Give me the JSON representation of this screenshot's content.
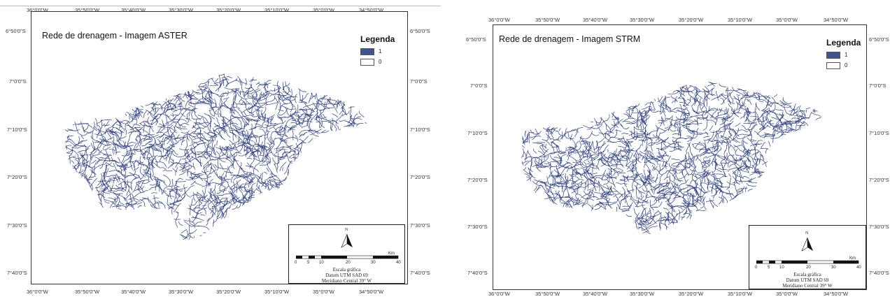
{
  "panels": [
    {
      "title": "Rede de drenagem - Imagem ASTER",
      "legend": {
        "title": "Legenda",
        "items": [
          {
            "label": "1",
            "color": "#3e5592"
          },
          {
            "label": "0",
            "color": "#ffffff"
          }
        ]
      },
      "lon_labels_top": [
        "36°0'0\"W",
        "35°50'0\"W",
        "35°40'0\"W",
        "35°30'0\"W",
        "35°20'0\"W",
        "35°10'0\"W",
        "35°0'0\"W",
        "34°50'0\"W"
      ],
      "lon_labels_bottom": [
        "36°0'0\"W",
        "35°50'0\"W",
        "35°40'0\"W",
        "35°30'0\"W",
        "35°20'0\"W",
        "35°10'0\"W",
        "35°0'0\"W",
        "34°50'0\"W"
      ],
      "lat_labels": [
        "6°50'0\"S",
        "7°0'0\"S",
        "7°10'0\"S",
        "7°20'0\"S",
        "7°30'0\"S",
        "7°40'0\"S"
      ],
      "scale": {
        "north": "N",
        "unit": "Km",
        "ticks": [
          "0",
          "5",
          "10",
          "20",
          "30",
          "40"
        ],
        "lines": [
          "Escala gráfica",
          "Datum UTM SAD 69",
          "Meridiano Central 39° W"
        ]
      },
      "network_color": "#2c3f82",
      "seed": 7
    },
    {
      "title": "Rede de drenagem - Imagem STRM",
      "legend": {
        "title": "Legenda",
        "items": [
          {
            "label": "1",
            "color": "#3e5592"
          },
          {
            "label": "0",
            "color": "#ffffff"
          }
        ]
      },
      "lon_labels_top": [
        "36°0'0\"W",
        "35°50'0\"W",
        "35°40'0\"W",
        "35°30'0\"W",
        "35°20'0\"W",
        "35°10'0\"W",
        "35°0'0\"W",
        "34°50'0\"W"
      ],
      "lon_labels_bottom": [
        "36°0'0\"W",
        "35°50'0\"W",
        "35°40'0\"W",
        "35°30'0\"W",
        "35°20'0\"W",
        "35°10'0\"W",
        "35°0'0\"W",
        "34°50'0\"W"
      ],
      "lat_labels": [
        "6°50'0\"S",
        "7°0'0\"S",
        "7°10'0\"S",
        "7°20'0\"S",
        "7°30'0\"S",
        "7°40'0\"S"
      ],
      "scale": {
        "north": "N",
        "unit": "Km",
        "ticks": [
          "0",
          "5",
          "10",
          "20",
          "30",
          "40"
        ],
        "lines": [
          "Escala gráfica",
          "Datum UTM SAD 69",
          "Meridiano Central 39° W"
        ]
      },
      "network_color": "#2c3f82",
      "seed": 19
    }
  ]
}
